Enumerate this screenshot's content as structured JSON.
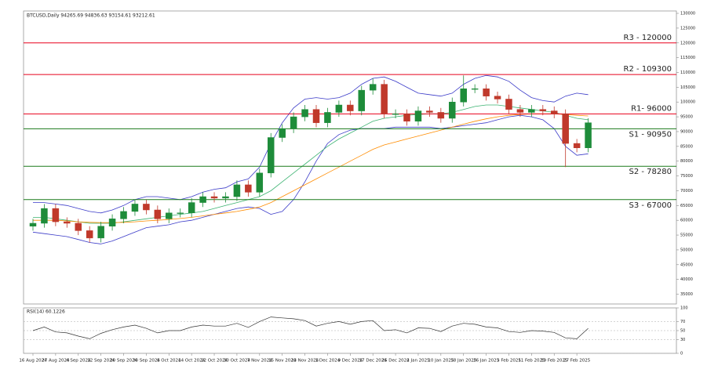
{
  "chart_data": [
    {
      "type": "candlestick",
      "title": "BTCUSD,Daily 94265.69 94836.63 93154.61 93212.61",
      "x": [
        "16 Aug 2024",
        null,
        "27 Aug 2024",
        null,
        "4 Sep 2024",
        null,
        "12 Sep 2024",
        null,
        "20 Sep 2024",
        null,
        "30 Sep 2024",
        null,
        "8 Oct 2024",
        null,
        "14 Oct 2024",
        null,
        "22 Oct 2024",
        null,
        "30 Oct 2024",
        null,
        "7 Nov 2024",
        null,
        "15 Nov 2024",
        null,
        "23 Nov 2024",
        null,
        "1 Dec 2024",
        null,
        "9 Dec 2024",
        null,
        "17 Dec 2024",
        null,
        "25 Dec 2024",
        null,
        "2 Jan 2025",
        null,
        "10 Jan 2025",
        null,
        "18 Jan 2025",
        null,
        "26 Jan 2025",
        null,
        "3 Feb 2025",
        null,
        "11 Feb 2025",
        null,
        "19 Feb 2025",
        null,
        "27 Feb 2025",
        null
      ],
      "open": [
        58000,
        59000,
        64000,
        59500,
        59000,
        56500,
        54000,
        58000,
        60500,
        63000,
        65500,
        63500,
        60500,
        62500,
        62500,
        66000,
        68000,
        67500,
        68000,
        72000,
        69500,
        76000,
        88000,
        91000,
        95000,
        97500,
        93000,
        96500,
        99000,
        97000,
        104000,
        106000,
        96000,
        96000,
        93500,
        97000,
        96500,
        94500,
        100000,
        104500,
        104500,
        102000,
        101000,
        97500,
        96500,
        97500,
        97000,
        96000,
        86000,
        84500
      ],
      "high": [
        60500,
        65500,
        65500,
        61000,
        60500,
        58000,
        59500,
        62000,
        64500,
        67000,
        67000,
        65000,
        64000,
        64000,
        67500,
        69500,
        69500,
        69500,
        73500,
        73500,
        77500,
        89500,
        92500,
        96500,
        99000,
        99000,
        98000,
        100500,
        100500,
        105500,
        108000,
        107500,
        97500,
        97500,
        98500,
        98500,
        98000,
        101500,
        109000,
        106000,
        106000,
        103500,
        102500,
        99000,
        99000,
        99000,
        98500,
        97500,
        87500,
        94500
      ],
      "low": [
        56500,
        57500,
        58000,
        57500,
        55000,
        52500,
        52500,
        56500,
        59000,
        61500,
        62000,
        59000,
        59000,
        61000,
        61000,
        64500,
        66000,
        66000,
        66500,
        68000,
        68000,
        74500,
        86500,
        89500,
        93500,
        91500,
        91500,
        95000,
        95500,
        95500,
        102500,
        94500,
        94500,
        92000,
        92000,
        95000,
        93000,
        93000,
        98500,
        103000,
        100500,
        99500,
        96000,
        95000,
        95000,
        95500,
        94500,
        78000,
        83000,
        83000
      ],
      "close": [
        59000,
        64000,
        59500,
        59000,
        56500,
        54000,
        58000,
        60500,
        63000,
        65500,
        63500,
        60500,
        62500,
        62500,
        66000,
        68000,
        67500,
        68000,
        72000,
        69500,
        76000,
        88000,
        91000,
        95000,
        97500,
        93000,
        96500,
        99000,
        97000,
        104000,
        106000,
        96000,
        96000,
        93500,
        97000,
        96500,
        94500,
        100000,
        104500,
        104500,
        102000,
        101000,
        97500,
        96500,
        97500,
        97000,
        96000,
        86000,
        84500,
        93000
      ],
      "up_color": "#1e8c3a",
      "down_color": "#c0392b",
      "series": [
        {
          "color": "#3a3ac8",
          "values": [
            66000,
            66000,
            65500,
            65000,
            64000,
            63000,
            62500,
            63500,
            65000,
            67000,
            68000,
            68000,
            67500,
            67000,
            68000,
            69500,
            70500,
            71000,
            73000,
            74000,
            78000,
            86000,
            93000,
            98000,
            101000,
            101500,
            101000,
            101500,
            103000,
            106000,
            108000,
            108500,
            107000,
            105000,
            103000,
            102500,
            102000,
            103000,
            106000,
            108000,
            109000,
            108500,
            107000,
            104000,
            101500,
            100500,
            100000,
            102000,
            103000,
            102500
          ]
        },
        {
          "color": "#3a3ac8",
          "values": [
            56000,
            55500,
            55000,
            54500,
            53500,
            52500,
            52000,
            53000,
            54500,
            56000,
            57500,
            58000,
            58500,
            59500,
            60000,
            61000,
            62000,
            63000,
            64000,
            64500,
            64000,
            62000,
            63000,
            67000,
            73000,
            80000,
            86000,
            89000,
            90500,
            91000,
            91000,
            91000,
            91500,
            91500,
            91500,
            91500,
            91000,
            91500,
            92000,
            92500,
            93000,
            94000,
            95000,
            95500,
            95000,
            94000,
            91000,
            85000,
            82000,
            82500
          ]
        },
        {
          "color": "#3cb371",
          "values": [
            61000,
            61000,
            60500,
            60000,
            59500,
            59000,
            59000,
            59000,
            59500,
            60000,
            60500,
            61000,
            61500,
            62000,
            62500,
            63000,
            64000,
            65000,
            66000,
            67000,
            68000,
            70000,
            73000,
            76000,
            79000,
            82000,
            85000,
            87500,
            89500,
            91500,
            93500,
            94500,
            95000,
            95500,
            95800,
            96000,
            96000,
            96500,
            97500,
            98500,
            99000,
            99000,
            98500,
            98000,
            97500,
            97000,
            96500,
            95500,
            94500,
            94000
          ]
        },
        {
          "color": "#ff8c00",
          "values": [
            60000,
            60000,
            60000,
            59800,
            59500,
            59300,
            59200,
            59200,
            59300,
            59500,
            59800,
            60000,
            60300,
            60600,
            61000,
            61500,
            62000,
            62500,
            63000,
            63700,
            64500,
            66000,
            68000,
            70000,
            72000,
            74000,
            76000,
            78000,
            80000,
            82000,
            84000,
            85500,
            86500,
            87500,
            88500,
            89500,
            90500,
            91500,
            92500,
            93500,
            94300,
            95000,
            95500,
            95800,
            96000,
            96000,
            96000,
            95800,
            95500,
            95300
          ]
        }
      ],
      "levels": [
        {
          "label": "R3 - 120000",
          "value": 120000,
          "color": "#e8001c"
        },
        {
          "label": "R2 - 109300",
          "value": 109300,
          "color": "#e8001c"
        },
        {
          "label": "R1- 96000",
          "value": 96000,
          "color": "#e8001c"
        },
        {
          "label": "S1 - 90950",
          "value": 90950,
          "color": "#1a7a1a"
        },
        {
          "label": "S2 - 78280",
          "value": 78280,
          "color": "#1a7a1a"
        },
        {
          "label": "S3 - 67000",
          "value": 67000,
          "color": "#1a7a1a"
        }
      ],
      "ylim": [
        31700,
        130800
      ],
      "yticks": [
        35000,
        40000,
        45000,
        50000,
        55000,
        60000,
        65000,
        70000,
        75000,
        80000,
        85000,
        90000,
        95000,
        100000,
        105000,
        110000,
        115000,
        120000,
        125000,
        130000
      ]
    },
    {
      "type": "line",
      "title": "RSI(14) 60.1226",
      "series": [
        {
          "color": "#333333",
          "values": [
            50,
            58,
            47,
            45,
            38,
            32,
            44,
            52,
            58,
            62,
            55,
            45,
            50,
            50,
            58,
            62,
            60,
            60,
            66,
            57,
            70,
            80,
            78,
            76,
            72,
            60,
            66,
            70,
            64,
            70,
            72,
            50,
            52,
            45,
            56,
            55,
            48,
            60,
            66,
            64,
            58,
            56,
            48,
            46,
            50,
            49,
            46,
            34,
            32,
            55
          ]
        }
      ],
      "ylim": [
        0,
        100
      ],
      "yticks": [
        0,
        30,
        50,
        70,
        100
      ]
    }
  ]
}
